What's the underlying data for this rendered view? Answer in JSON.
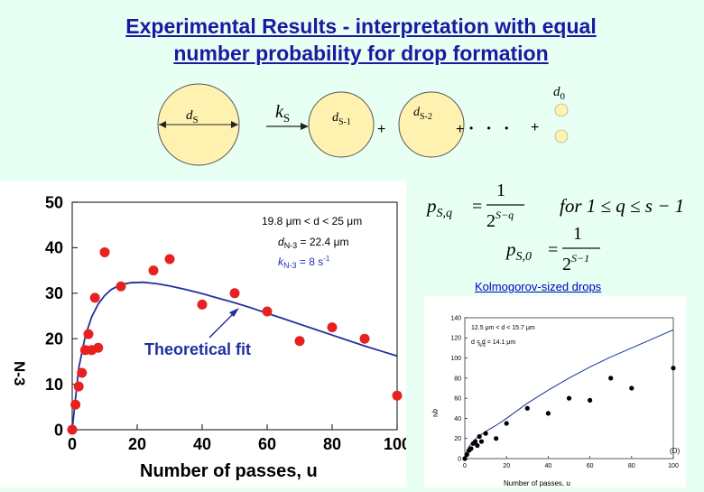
{
  "title_line1": "Experimental Results - interpretation with equal",
  "title_line2": "number probability for drop formation",
  "diagram": {
    "d_s": "d",
    "d_s_sub": "S",
    "k": "k",
    "k_sub": "S",
    "d_s1": "d",
    "d_s1_sub": "S-1",
    "d_s2": "d",
    "d_s2_sub": "S-2",
    "d0": "d",
    "d0_sub": "0",
    "plus": "+",
    "dots": "• • •"
  },
  "equations": {
    "eq1_lhs": "p",
    "eq1_lhs_sub": "S,q",
    "eq1_num": "1",
    "eq1_den": "2",
    "eq1_den_exp": "S−q",
    "eq1_cond": "for 1 ≤ q ≤ s − 1",
    "eq2_lhs": "p",
    "eq2_lhs_sub": "S,0",
    "eq2_num": "1",
    "eq2_den": "2",
    "eq2_den_exp": "S−1"
  },
  "kolmogorov_label": "Kolmogorov-sized drops",
  "chart_data": [
    {
      "type": "scatter",
      "xlabel": "Number of passes, u",
      "ylabel_partial": "N-3",
      "xlim": [
        0,
        100
      ],
      "ylim": [
        0,
        50
      ],
      "xticks": [
        "0",
        "20",
        "40",
        "60",
        "80",
        "100"
      ],
      "yticks": [
        "0",
        "10",
        "20",
        "30",
        "40",
        "50"
      ],
      "points_color": "#e82020",
      "fit_color": "#2030a0",
      "series": [
        {
          "kind": "points",
          "x": [
            0,
            1,
            2,
            3,
            4,
            5,
            6,
            7,
            8,
            10,
            15,
            25,
            30,
            40,
            50,
            60,
            70,
            80,
            90,
            100
          ],
          "y": [
            0,
            5.5,
            9.5,
            12.5,
            17.5,
            21,
            17.5,
            29,
            18,
            39,
            31.5,
            35,
            37.5,
            27.5,
            30,
            26,
            19.5,
            22.5,
            20,
            7.5
          ]
        },
        {
          "kind": "fit",
          "x": [
            0,
            2,
            4,
            6,
            8,
            10,
            12,
            15,
            18,
            22,
            26,
            30,
            35,
            40,
            45,
            50,
            55,
            60,
            65,
            70,
            75,
            80,
            85,
            90,
            95,
            100,
            105
          ],
          "y": [
            0,
            13.5,
            20.5,
            24.8,
            27.6,
            29.5,
            30.8,
            31.9,
            32.3,
            32.4,
            32.1,
            31.6,
            30.8,
            29.9,
            28.9,
            27.9,
            26.8,
            25.6,
            24.4,
            23.2,
            22.0,
            20.8,
            19.6,
            18.4,
            17.3,
            16.2,
            14.3
          ]
        }
      ],
      "legend": {
        "line1": "19.8 μm < d < 25 μm",
        "line2_a": "d",
        "line2_sub": "N-3",
        "line2_b": " =  22.4 μm",
        "line3_a": "k",
        "line3_sub": "N-3",
        "line3_b": " = 8 s",
        "line3_sup": "-1"
      },
      "annotation": "Theoretical fit"
    },
    {
      "type": "scatter",
      "xlabel": "Number of passes, u",
      "ylabel_partial": "q̄N",
      "xlim": [
        0,
        100
      ],
      "ylim": [
        0,
        140
      ],
      "xticks": [
        "0",
        "20",
        "40",
        "60",
        "80",
        "100"
      ],
      "yticks": [
        "0",
        "20",
        "40",
        "60",
        "80",
        "100",
        "120",
        "140"
      ],
      "series": [
        {
          "kind": "points",
          "x": [
            0,
            1,
            2,
            3,
            4,
            5,
            6,
            7,
            8,
            10,
            15,
            20,
            30,
            40,
            50,
            60,
            70,
            80,
            100
          ],
          "y": [
            0,
            4,
            8,
            10,
            15,
            17,
            13,
            22,
            17,
            25,
            20,
            35,
            50,
            45,
            60,
            58,
            80,
            70,
            90
          ]
        },
        {
          "kind": "fit",
          "x": [
            0,
            1,
            2,
            4,
            6,
            8,
            10,
            15,
            20,
            30,
            40,
            50,
            60,
            70,
            80,
            90,
            100
          ],
          "y": [
            0,
            8,
            12,
            17,
            21,
            24,
            27,
            33,
            40,
            55,
            68,
            80,
            91,
            101,
            110,
            119,
            128
          ]
        }
      ],
      "legend": {
        "line1": "12.5 μm < d < 15.7 μm",
        "line2": "d     = d  = 14.1 μm",
        "line2_sub": "N-5",
        "corner": "(D)"
      }
    }
  ]
}
